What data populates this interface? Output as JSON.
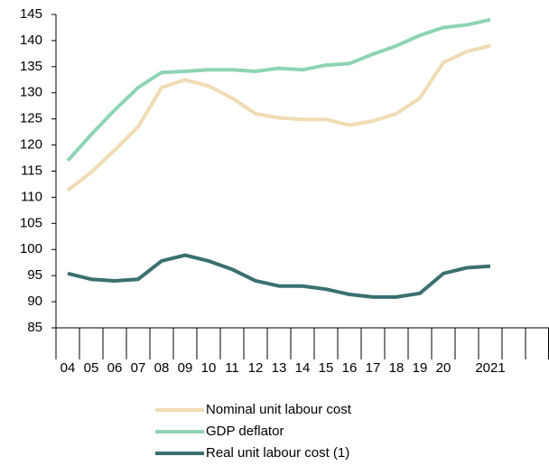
{
  "chart_data": {
    "type": "line",
    "categories": [
      "04",
      "05",
      "06",
      "07",
      "08",
      "09",
      "10",
      "11",
      "12",
      "13",
      "14",
      "15",
      "16",
      "17",
      "18",
      "19",
      "20",
      null,
      "2021",
      null,
      null
    ],
    "series": [
      {
        "name": "Nominal unit labour cost",
        "color": "#f0dcb4",
        "values": [
          111.3,
          114.8,
          119,
          123.5,
          131,
          132.5,
          131.3,
          129,
          126,
          125.2,
          124.9,
          124.9,
          123.8,
          124.6,
          126,
          129,
          135.8,
          137.9,
          139,
          null,
          null
        ]
      },
      {
        "name": "GDP deflator",
        "color": "#8ed4b4",
        "values": [
          117,
          122,
          126.7,
          131,
          133.9,
          134.1,
          134.4,
          134.4,
          134.1,
          134.7,
          134.4,
          135.3,
          135.6,
          137.4,
          139,
          141,
          142.5,
          143,
          144,
          null,
          null
        ]
      },
      {
        "name": "Real unit labour cost (1)",
        "color": "#3a7070",
        "values": [
          95.4,
          94.3,
          94,
          94.3,
          97.8,
          98.9,
          97.8,
          96.2,
          94,
          93,
          93,
          92.4,
          91.4,
          90.9,
          90.9,
          91.6,
          95.4,
          96.5,
          96.8,
          null,
          null
        ]
      }
    ],
    "ylim": [
      85,
      145
    ],
    "yticks": [
      85,
      90,
      95,
      100,
      105,
      110,
      115,
      120,
      125,
      130,
      135,
      140,
      145
    ],
    "grid": false,
    "legend": "bottom"
  }
}
